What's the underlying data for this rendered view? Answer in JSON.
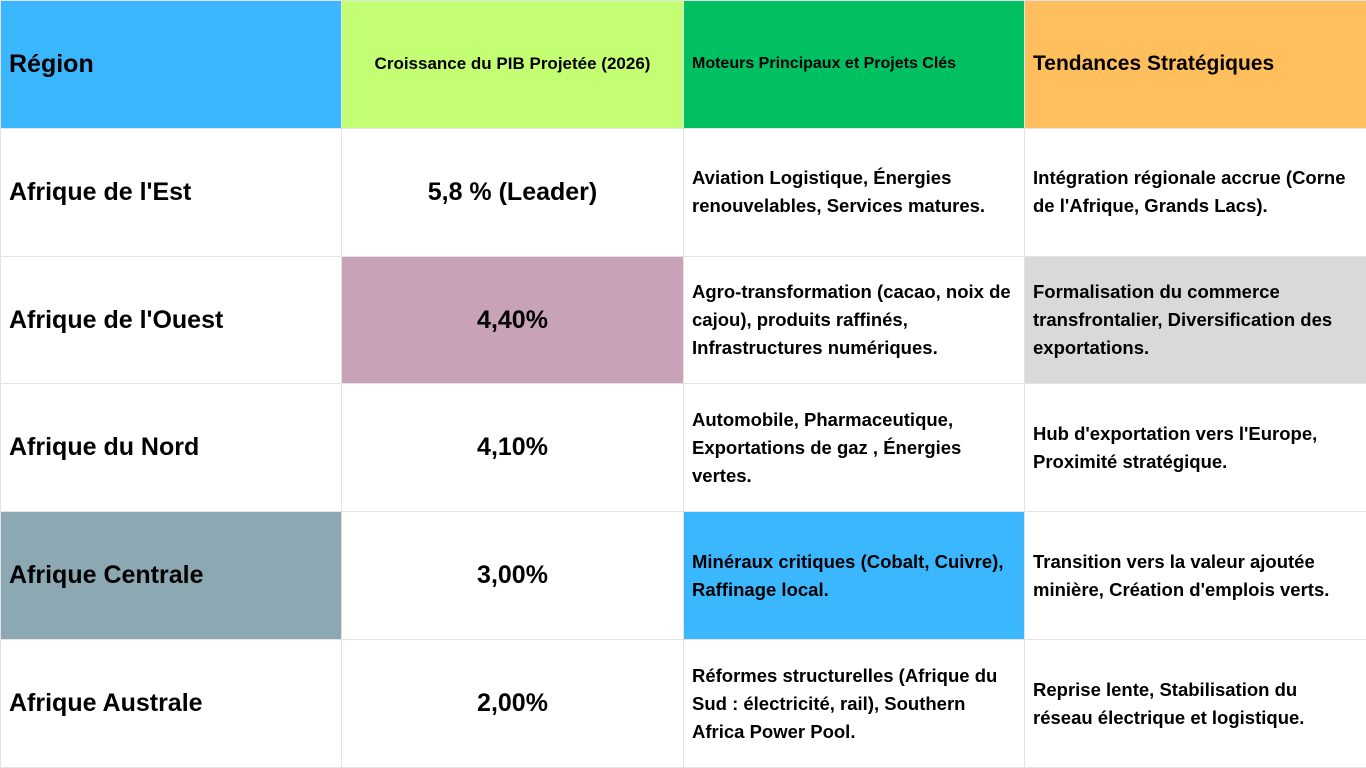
{
  "header": {
    "region": "Région",
    "growth": "Croissance du PIB Projetée (2026)",
    "drivers": "Moteurs Principaux et Projets Clés",
    "trends": "Tendances Stratégiques",
    "colors": {
      "region": "#3BB7FF",
      "growth": "#C4FF73",
      "drivers": "#00C062",
      "trends": "#FFBF5C"
    }
  },
  "rows": [
    {
      "region": "Afrique de l'Est",
      "growth": "5,8 % (Leader)",
      "drivers": "Aviation Logistique, Énergies renouvelables, Services matures.",
      "trends": "Intégration régionale accrue (Corne de l'Afrique, Grands Lacs).",
      "colors": {
        "region": "#FFFFFF",
        "growth": "#FFFFFF",
        "drivers": "#FFFFFF",
        "trends": "#FFFFFF"
      }
    },
    {
      "region": "Afrique de l'Ouest",
      "growth": "4,40%",
      "drivers": "Agro-transformation (cacao, noix de cajou), produits raffinés, Infrastructures numériques.",
      "trends": "Formalisation du commerce transfrontalier, Diversification des exportations.",
      "colors": {
        "region": "#FFFFFF",
        "growth": "#C8A2B6",
        "drivers": "#FFFFFF",
        "trends": "#D9D9D9"
      }
    },
    {
      "region": "Afrique du Nord",
      "growth": "4,10%",
      "drivers": "Automobile, Pharmaceutique, Exportations de gaz , Énergies vertes.",
      "trends": "Hub d'exportation vers l'Europe, Proximité stratégique.",
      "colors": {
        "region": "#FFFFFF",
        "growth": "#FFFFFF",
        "drivers": "#FFFFFF",
        "trends": "#FFFFFF"
      }
    },
    {
      "region": "Afrique Centrale",
      "growth": "3,00%",
      "drivers": "Minéraux critiques (Cobalt, Cuivre), Raffinage local.",
      "trends": "Transition vers la valeur ajoutée minière, Création d'emplois verts.",
      "colors": {
        "region": "#8BA8B3",
        "growth": "#FFFFFF",
        "drivers": "#3BB7FF",
        "trends": "#FFFFFF"
      }
    },
    {
      "region": "Afrique Australe",
      "growth": "2,00%",
      "drivers": "Réformes structurelles (Afrique du Sud : électricité, rail), Southern Africa Power Pool.",
      "trends": "Reprise lente, Stabilisation du réseau électrique et logistique.",
      "colors": {
        "region": "#FFFFFF",
        "growth": "#FFFFFF",
        "drivers": "#FFFFFF",
        "trends": "#FFFFFF"
      }
    }
  ]
}
